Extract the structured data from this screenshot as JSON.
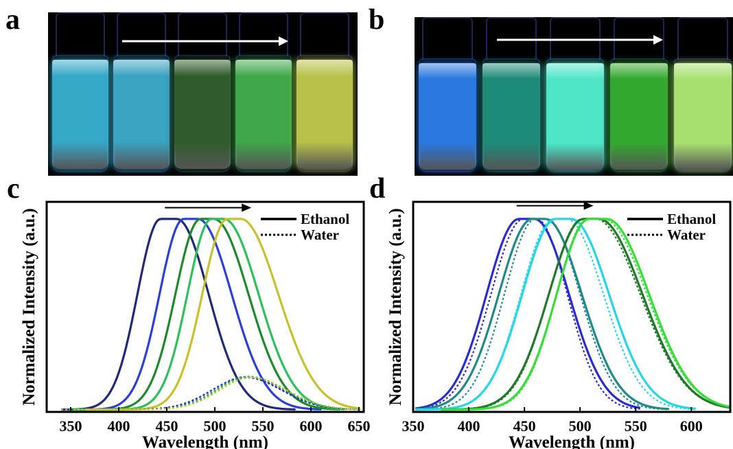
{
  "panels": {
    "a": "a",
    "b": "b",
    "c": "c",
    "d": "d"
  },
  "photos": {
    "a": {
      "vial_colors": [
        "#36a8c8",
        "#3aa3c2",
        "#2f5c2a",
        "#3fa64a",
        "#b8c24a"
      ],
      "arrow_color": "#ffffff"
    },
    "b": {
      "vial_colors": [
        "#2a78e0",
        "#1e8a78",
        "#4fe6c8",
        "#33a82e",
        "#a8e070"
      ],
      "arrow_color": "#ffffff"
    }
  },
  "chart_data": [
    {
      "panel": "c",
      "type": "line",
      "xlabel": "Wavelength (nm)",
      "ylabel": "Normalized Intensity (a.u.)",
      "xlim": [
        325,
        655
      ],
      "ylim": [
        0,
        1.08
      ],
      "xticks": [
        350,
        400,
        450,
        500,
        550,
        600,
        650
      ],
      "xtick_labels": [
        "350",
        "400",
        "450",
        "500",
        "550",
        "600",
        "650"
      ],
      "legend": {
        "placement": "top-right",
        "entries": [
          {
            "label": "Ethanol",
            "style": "solid"
          },
          {
            "label": "Water",
            "style": "dotted"
          }
        ]
      },
      "arrow": {
        "from_x": 448,
        "to_x": 538,
        "y": 1.05,
        "direction": "right"
      },
      "series": [
        {
          "color": "#1f2a7a",
          "style": "solid",
          "peak": 452,
          "left_w": 48,
          "right_w": 66,
          "amp": 1.0,
          "x_start": 340,
          "x_end": 585,
          "plateau": 17
        },
        {
          "color": "#2a3fe0",
          "style": "solid",
          "peak": 475,
          "left_w": 50,
          "right_w": 70,
          "amp": 1.0,
          "x_start": 345,
          "x_end": 612,
          "plateau": 15
        },
        {
          "color": "#1f8a2a",
          "style": "solid",
          "peak": 492,
          "left_w": 52,
          "right_w": 72,
          "amp": 1.0,
          "x_start": 350,
          "x_end": 630,
          "plateau": 14
        },
        {
          "color": "#2cc25a",
          "style": "solid",
          "peak": 503,
          "left_w": 50,
          "right_w": 72,
          "amp": 1.0,
          "x_start": 355,
          "x_end": 635,
          "plateau": 13
        },
        {
          "color": "#c8c22a",
          "style": "solid",
          "peak": 520,
          "left_w": 52,
          "right_w": 78,
          "amp": 1.0,
          "x_start": 365,
          "x_end": 652,
          "plateau": 14
        },
        {
          "color": "#1f2a7a",
          "style": "dotted",
          "peak": 532,
          "left_w": 70,
          "right_w": 75,
          "amp": 0.165,
          "x_start": 340,
          "x_end": 652,
          "plateau": 0
        },
        {
          "color": "#2a3fe0",
          "style": "dotted",
          "peak": 532,
          "left_w": 68,
          "right_w": 76,
          "amp": 0.168,
          "x_start": 340,
          "x_end": 652,
          "plateau": 0
        },
        {
          "color": "#1f8a2a",
          "style": "dotted",
          "peak": 535,
          "left_w": 66,
          "right_w": 75,
          "amp": 0.17,
          "x_start": 340,
          "x_end": 652,
          "plateau": 0
        },
        {
          "color": "#2cc25a",
          "style": "dotted",
          "peak": 535,
          "left_w": 65,
          "right_w": 76,
          "amp": 0.168,
          "x_start": 340,
          "x_end": 652,
          "plateau": 0
        },
        {
          "color": "#c8c22a",
          "style": "dotted",
          "peak": 538,
          "left_w": 66,
          "right_w": 74,
          "amp": 0.165,
          "x_start": 340,
          "x_end": 652,
          "plateau": 0
        }
      ]
    },
    {
      "panel": "d",
      "type": "line",
      "xlabel": "Wavelength (nm)",
      "ylabel": "Normalized Intensity (a.u.)",
      "xlim": [
        350,
        635
      ],
      "ylim": [
        0,
        1.08
      ],
      "xticks": [
        350,
        400,
        450,
        500,
        550,
        600
      ],
      "xtick_labels": [
        "350",
        "400",
        "450",
        "500",
        "550",
        "600"
      ],
      "legend": {
        "placement": "top-right",
        "entries": [
          {
            "label": "Ethanol",
            "style": "solid"
          },
          {
            "label": "Water",
            "style": "dotted"
          }
        ]
      },
      "arrow": {
        "from_x": 443,
        "to_x": 512,
        "y": 1.06,
        "direction": "right"
      },
      "series": [
        {
          "color": "#2a2ad8",
          "style": "solid",
          "peak": 452,
          "left_w": 58,
          "right_w": 62,
          "amp": 1.0,
          "x_start": 352,
          "x_end": 555,
          "plateau": 14
        },
        {
          "color": "#2a2ad8",
          "style": "dotted",
          "peak": 455,
          "left_w": 58,
          "right_w": 55,
          "amp": 1.0,
          "x_start": 352,
          "x_end": 555,
          "plateau": 12
        },
        {
          "color": "#1f8a8a",
          "style": "solid",
          "peak": 463,
          "left_w": 60,
          "right_w": 65,
          "amp": 1.0,
          "x_start": 352,
          "x_end": 580,
          "plateau": 12
        },
        {
          "color": "#1f8a8a",
          "style": "dotted",
          "peak": 465,
          "left_w": 56,
          "right_w": 60,
          "amp": 1.0,
          "x_start": 352,
          "x_end": 580,
          "plateau": 10
        },
        {
          "color": "#22d8e8",
          "style": "solid",
          "peak": 485,
          "left_w": 60,
          "right_w": 68,
          "amp": 1.0,
          "x_start": 352,
          "x_end": 605,
          "plateau": 14
        },
        {
          "color": "#22d8e8",
          "style": "dotted",
          "peak": 482,
          "left_w": 58,
          "right_w": 66,
          "amp": 1.0,
          "x_start": 352,
          "x_end": 605,
          "plateau": 12
        },
        {
          "color": "#1f7a2a",
          "style": "solid",
          "peak": 510,
          "left_w": 62,
          "right_w": 78,
          "amp": 1.0,
          "x_start": 375,
          "x_end": 635,
          "plateau": 14
        },
        {
          "color": "#1f7a2a",
          "style": "dotted",
          "peak": 508,
          "left_w": 60,
          "right_w": 80,
          "amp": 1.0,
          "x_start": 375,
          "x_end": 635,
          "plateau": 12
        },
        {
          "color": "#33e033",
          "style": "solid",
          "peak": 516,
          "left_w": 58,
          "right_w": 76,
          "amp": 1.0,
          "x_start": 375,
          "x_end": 635,
          "plateau": 16
        },
        {
          "color": "#33e033",
          "style": "dotted",
          "peak": 514,
          "left_w": 56,
          "right_w": 78,
          "amp": 1.0,
          "x_start": 375,
          "x_end": 635,
          "plateau": 14
        }
      ]
    }
  ]
}
